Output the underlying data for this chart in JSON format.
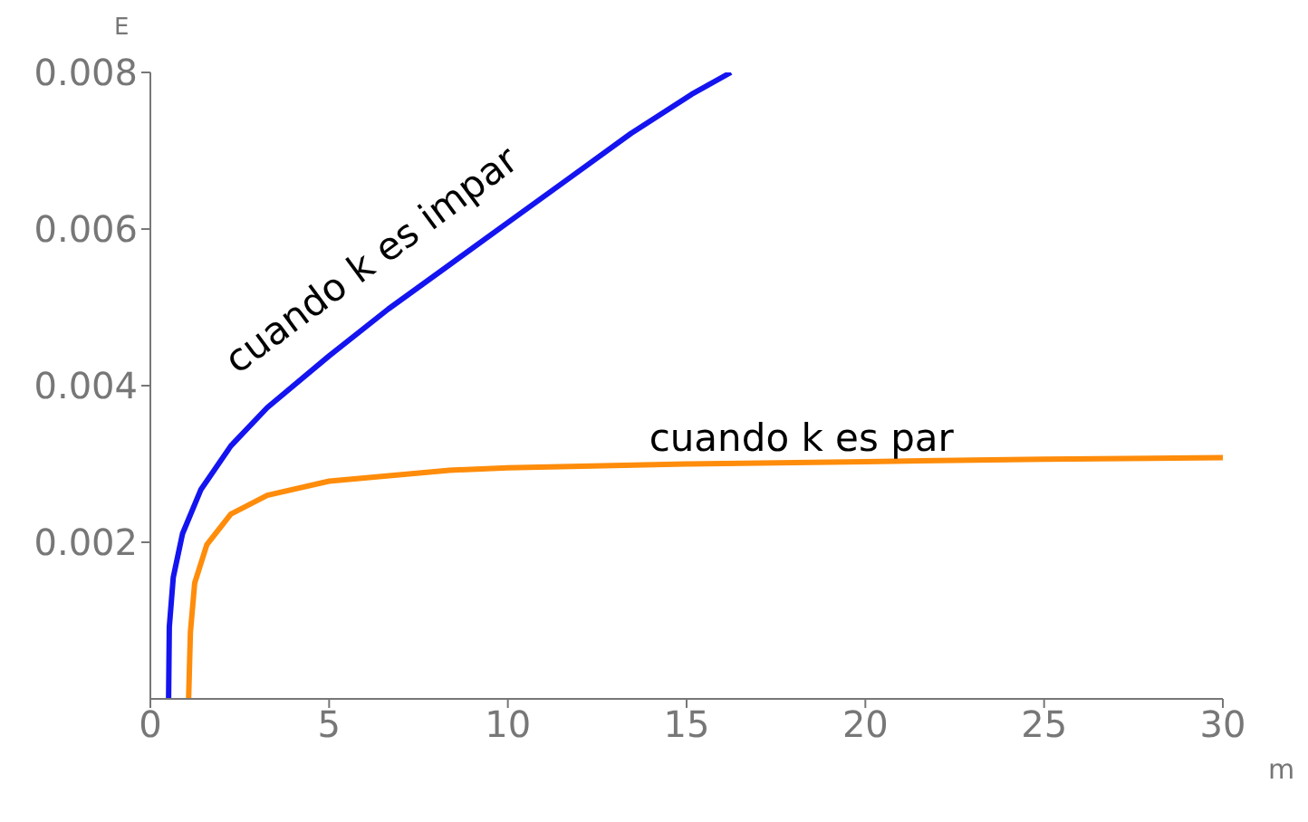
{
  "chart_data": {
    "type": "line",
    "xlabel": "m",
    "ylabel": "E",
    "xlim": [
      0,
      30
    ],
    "ylim": [
      0,
      0.008
    ],
    "xticks": [
      0,
      5,
      10,
      15,
      20,
      25,
      30
    ],
    "yticks": [
      0.002,
      0.004,
      0.006,
      0.008
    ],
    "marker": "none",
    "line_style": "solid",
    "series": [
      {
        "name": "cuando k es impar",
        "color": "#1414f0",
        "x": [
          0.51,
          0.53,
          0.64,
          0.9,
          1.41,
          2.25,
          3.27,
          5.0,
          6.66,
          8.36,
          10.05,
          11.75,
          13.44,
          15.14,
          16.24
        ],
        "values": [
          0,
          0.00092,
          0.00155,
          0.00211,
          0.00267,
          0.00323,
          0.00372,
          0.00438,
          0.00498,
          0.00554,
          0.0061,
          0.00666,
          0.00722,
          0.00772,
          0.008
        ]
      },
      {
        "name": "cuando k es par",
        "color": "#ff8c0a",
        "x": [
          1.07,
          1.12,
          1.24,
          1.58,
          2.25,
          3.27,
          5.0,
          8.36,
          10,
          15,
          20,
          25,
          30
        ],
        "values": [
          0,
          0.00085,
          0.00148,
          0.00197,
          0.00236,
          0.0026,
          0.00278,
          0.00292,
          0.00295,
          0.003,
          0.00303,
          0.00306,
          0.00308
        ]
      }
    ]
  }
}
